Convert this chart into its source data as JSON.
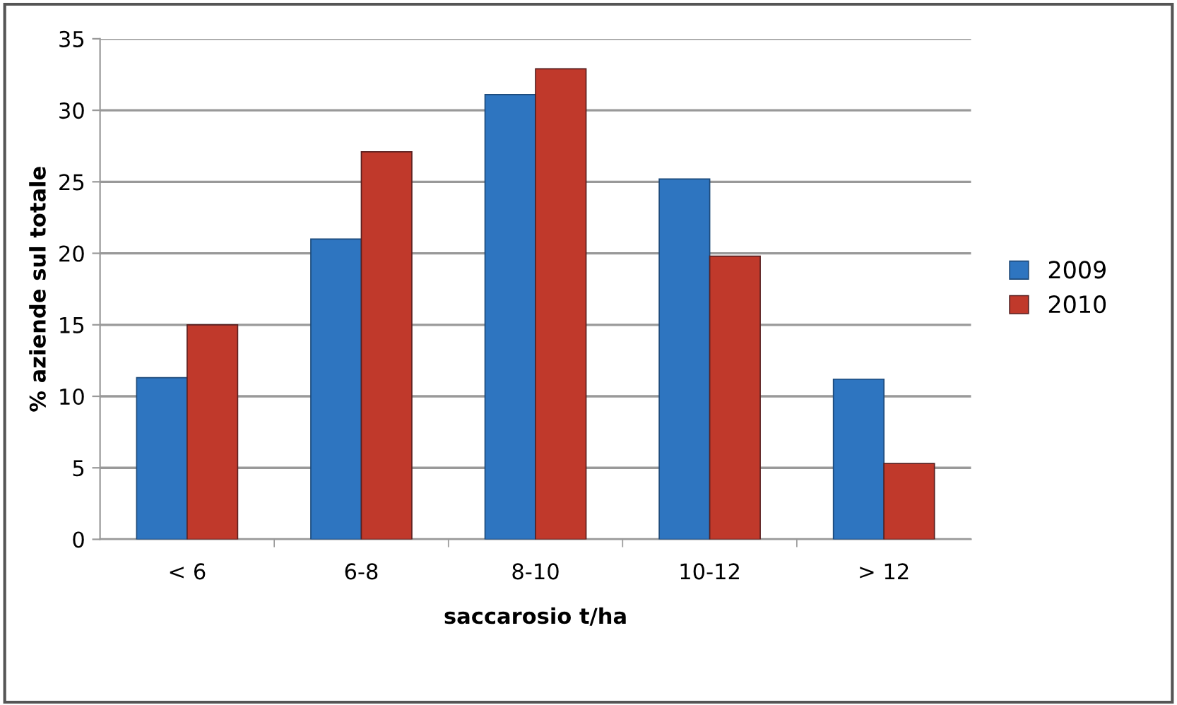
{
  "chart_data": {
    "type": "bar",
    "xlabel": "saccarosio t/ha",
    "ylabel": "% aziende sul totale",
    "categories": [
      "< 6",
      "6-8",
      "8-10",
      "10-12",
      "> 12"
    ],
    "series": [
      {
        "name": "2009",
        "color": "#2e75c0",
        "values": [
          11.3,
          21.0,
          31.1,
          25.2,
          11.2
        ]
      },
      {
        "name": "2010",
        "color": "#c0392b",
        "values": [
          15.0,
          27.1,
          32.9,
          19.8,
          5.3
        ]
      }
    ],
    "ylim": [
      0,
      35
    ],
    "yticks": [
      0,
      5,
      10,
      15,
      20,
      25,
      30,
      35
    ],
    "grid": "y",
    "legend": "right"
  }
}
